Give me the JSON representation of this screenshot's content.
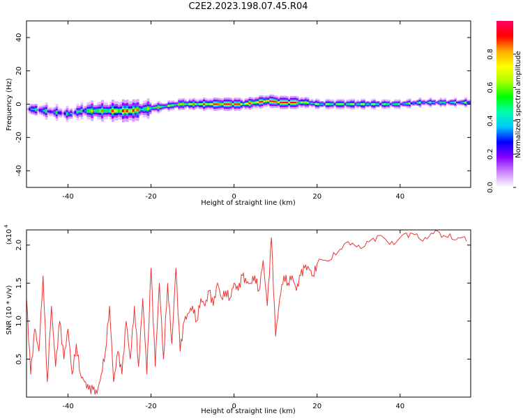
{
  "title": "C2E2.2023.198.07.45.R04",
  "colors": {
    "snr_line": "#ee3333",
    "axis": "#000000"
  },
  "chart_data": [
    {
      "type": "heatmap",
      "xlabel": "Height of straight line (km)",
      "ylabel": "Frequency (Hz)",
      "xlim": [
        -50,
        57
      ],
      "ylim": [
        -50,
        50
      ],
      "xticks": [
        -40,
        -20,
        0,
        20,
        40
      ],
      "xtick_labels": [
        "-40",
        "-20",
        "0",
        "20",
        "40"
      ],
      "yticks": [
        -40,
        -20,
        0,
        20,
        40
      ],
      "ytick_labels": [
        "-40",
        "-20",
        "0",
        "20",
        "40"
      ],
      "colorbar": {
        "label": "Normalized spectral amplitude",
        "range": [
          0,
          1
        ],
        "ticks": [
          0.0,
          0.2,
          0.4,
          0.6,
          0.8
        ],
        "tick_labels": [
          "0.0",
          "0.2",
          "0.4",
          "0.6",
          "0.8"
        ],
        "colormap": [
          "#ffffff",
          "#cc88ff",
          "#8800ff",
          "#0000ff",
          "#00c8ff",
          "#00ffaa",
          "#00ff00",
          "#aaff00",
          "#ffff00",
          "#ffaa00",
          "#ff0000",
          "#ff0066"
        ]
      },
      "ridge": {
        "x": [
          -49,
          -46,
          -43,
          -40,
          -37,
          -34,
          -31,
          -28,
          -25,
          -22,
          -19,
          -16,
          -13,
          -10,
          -7,
          -4,
          -1,
          2,
          5,
          8,
          11,
          14,
          17,
          20,
          25,
          30,
          35,
          40,
          45,
          50,
          56
        ],
        "freq": [
          -3,
          -4,
          -5,
          -6,
          -4,
          -4,
          -4,
          -4,
          -4,
          -3,
          -2,
          -1,
          0,
          0,
          0,
          0,
          0,
          0,
          1,
          2,
          1,
          1,
          1,
          0,
          0,
          0,
          0,
          0,
          1,
          1,
          1
        ],
        "amplitude": [
          0.3,
          0.35,
          0.3,
          0.3,
          0.4,
          0.6,
          0.6,
          0.7,
          0.85,
          0.5,
          0.6,
          0.5,
          0.7,
          0.65,
          0.75,
          0.9,
          0.95,
          0.7,
          0.8,
          0.85,
          0.95,
          0.9,
          0.6,
          0.5,
          0.55,
          0.55,
          0.5,
          0.45,
          0.4,
          0.4,
          0.4
        ]
      }
    },
    {
      "type": "line",
      "xlabel": "Height of straight line (km)",
      "ylabel": "SNR (10 * v/v)",
      "multiplier_label": "(x10",
      "multiplier_exp": "4",
      "xlim": [
        -50,
        57
      ],
      "ylim": [
        0,
        2.2
      ],
      "xticks": [
        -40,
        -20,
        0,
        20,
        40
      ],
      "xtick_labels": [
        "-40",
        "-20",
        "0",
        "20",
        "40"
      ],
      "yticks": [
        0.5,
        1.0,
        1.5,
        2.0
      ],
      "ytick_labels": [
        "0.5",
        "1.0",
        "1.5",
        "2.0"
      ],
      "series": [
        {
          "x": [
            -50,
            -49,
            -48,
            -47,
            -46,
            -45,
            -44,
            -43,
            -42,
            -41,
            -40,
            -39,
            -38,
            -37,
            -36,
            -35,
            -34,
            -33,
            -32,
            -31,
            -30,
            -29,
            -28,
            -27,
            -26,
            -25,
            -24,
            -23,
            -22,
            -21,
            -20,
            -19,
            -18,
            -17,
            -16,
            -15,
            -14,
            -13,
            -12,
            -11,
            -10,
            -9,
            -8,
            -7,
            -6,
            -5,
            -4,
            -3,
            -2,
            -1,
            0,
            1,
            2,
            3,
            4,
            5,
            6,
            7,
            8,
            9,
            10,
            11,
            12,
            13,
            14,
            15,
            16,
            17,
            18,
            19,
            20,
            22,
            24,
            26,
            28,
            30,
            32,
            34,
            36,
            38,
            40,
            42,
            44,
            46,
            48,
            50,
            52,
            54,
            56
          ],
          "y": [
            1.3,
            0.3,
            0.9,
            0.6,
            1.6,
            0.2,
            1.2,
            0.4,
            1.0,
            0.5,
            0.9,
            0.3,
            0.7,
            0.3,
            0.2,
            0.1,
            0.1,
            0.05,
            0.3,
            0.6,
            1.2,
            0.2,
            0.6,
            0.3,
            1.0,
            0.5,
            1.2,
            0.4,
            1.3,
            0.3,
            1.7,
            0.4,
            1.5,
            0.5,
            1.5,
            0.7,
            1.7,
            0.6,
            1.0,
            1.1,
            1.2,
            1.0,
            1.3,
            1.2,
            1.4,
            1.2,
            1.5,
            1.3,
            1.4,
            1.3,
            1.5,
            1.4,
            1.6,
            1.5,
            1.5,
            1.6,
            1.4,
            1.8,
            1.2,
            2.1,
            0.8,
            1.3,
            1.6,
            1.5,
            1.6,
            1.4,
            1.6,
            1.7,
            1.7,
            1.6,
            1.75,
            1.8,
            1.9,
            1.95,
            2.0,
            2.0,
            2.05,
            2.05,
            2.1,
            2.05,
            2.1,
            2.1,
            2.15,
            2.1,
            2.15,
            2.1,
            2.15,
            2.1,
            2.05
          ]
        }
      ]
    }
  ]
}
